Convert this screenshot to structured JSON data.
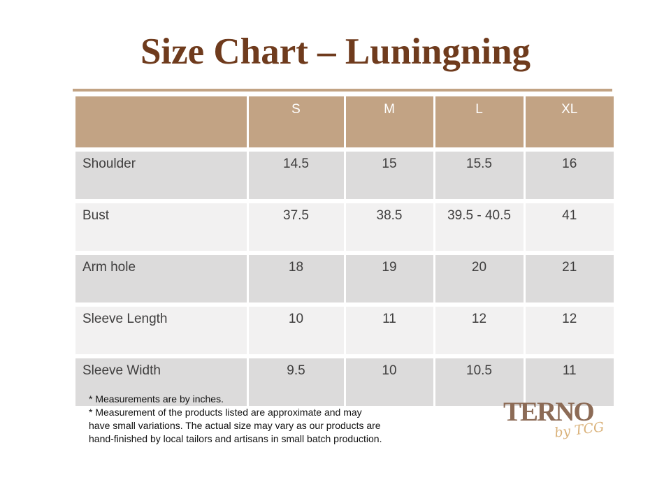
{
  "page": {
    "title": "Size Chart – Luningning"
  },
  "table": {
    "size_headers": [
      "S",
      "M",
      "L",
      "XL"
    ],
    "rows": [
      {
        "label": "Shoulder",
        "values": [
          "14.5",
          "15",
          "15.5",
          "16"
        ]
      },
      {
        "label": "Bust",
        "values": [
          "37.5",
          "38.5",
          "39.5 - 40.5",
          "41"
        ]
      },
      {
        "label": "Arm hole",
        "values": [
          "18",
          "19",
          "20",
          "21"
        ]
      },
      {
        "label": "Sleeve Length",
        "values": [
          "10",
          "11",
          "12",
          "12"
        ]
      },
      {
        "label": "Sleeve Width",
        "values": [
          "9.5",
          "10",
          "10.5",
          "11"
        ]
      }
    ]
  },
  "notes": {
    "lines": [
      "* Measurements are by inches.",
      "* Measurement of the products listed are approximate and may",
      "have small variations. The actual size may vary as our products are",
      "hand-finished by local tailors and artisans in small batch production."
    ]
  },
  "logo": {
    "brand": "TERNO",
    "tagline": "by TCG"
  },
  "colors": {
    "title_brown": "#6f3b1d",
    "header_bg": "#c2a384",
    "header_text": "#ffffff",
    "row_gray": "#dcdbdb",
    "row_light": "#f2f1f1",
    "body_text": "#3f3e3e",
    "logo_brown": "#8c6b56",
    "tagline_gold": "#dab27a"
  }
}
